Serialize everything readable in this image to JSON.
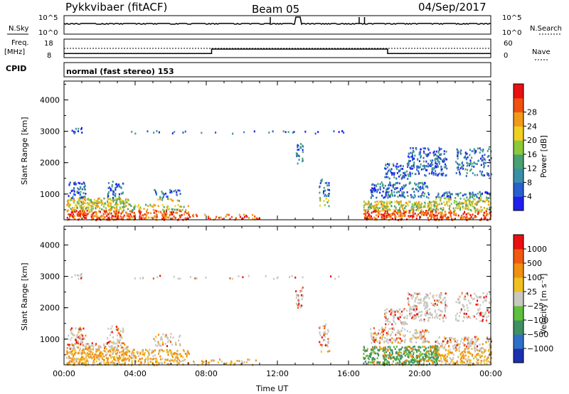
{
  "header": {
    "station": "Pykkvibaer (fitACF)",
    "beam": "Beam 05",
    "date": "04/Sep/2017"
  },
  "params": {
    "nsky_label": "N.Sky",
    "nsky_ticks": [
      "10^5",
      "10^0"
    ],
    "nsearch_label": "N.Search",
    "nsearch_ticks": [
      "10^5",
      "10^0"
    ],
    "freq_label_line1": "Freq.",
    "freq_label_line2": "[MHz]",
    "freq_ticks": [
      "18",
      "8"
    ],
    "nave_label": "Nave",
    "nave_ticks": [
      "60",
      "0"
    ],
    "cpid_label": "CPID",
    "cpid_text": "normal (fast stereo) 153",
    "freq_steps_hours": [
      0,
      8.3,
      18.2,
      24
    ],
    "freq_levels_mhz": [
      10.2,
      12.6,
      10.2
    ]
  },
  "chart_data": [
    {
      "type": "heatmap",
      "name": "power",
      "ylabel": "Slant Range [km]",
      "yticks": [
        "1000",
        "2000",
        "3000",
        "4000"
      ],
      "ylim": [
        180,
        4600
      ],
      "xlim": [
        0,
        24
      ],
      "colorbar": {
        "label": "Power [dB]",
        "ticks": [
          "4",
          "8",
          "12",
          "16",
          "20",
          "24",
          "28"
        ],
        "colors": [
          "#1f1ff0",
          "#2a5fd0",
          "#3a8fa8",
          "#4aa070",
          "#8cc83c",
          "#f0d020",
          "#f09a18",
          "#f05010",
          "#e81010"
        ]
      }
    },
    {
      "type": "heatmap",
      "name": "velocity",
      "ylabel": "Slant Range [km]",
      "yticks": [
        "1000",
        "2000",
        "3000",
        "4000"
      ],
      "ylim": [
        180,
        4600
      ],
      "xlim": [
        0,
        24
      ],
      "xlabel": "Time UT",
      "xticks": [
        "00:00",
        "04:00",
        "08:00",
        "12:00",
        "16:00",
        "20:00",
        "00:00"
      ],
      "colorbar": {
        "label": "Velocity [m s⁻¹]",
        "ticks": [
          "1000",
          "500",
          "100",
          "25",
          "−25",
          "−100",
          "−500",
          "−1000"
        ],
        "colors": [
          "#1b2fb0",
          "#2f6fc8",
          "#3f9060",
          "#5ec03c",
          "#c8c8c0",
          "#f0c020",
          "#f09010",
          "#f05a10",
          "#e81010"
        ]
      }
    }
  ]
}
